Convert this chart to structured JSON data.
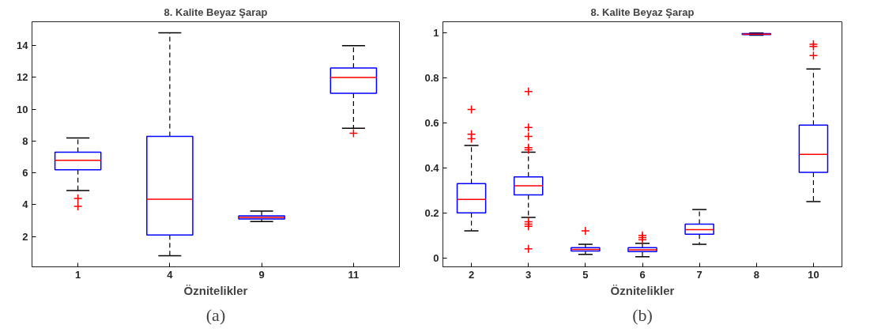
{
  "chart_data": [
    {
      "type": "box",
      "title": "8. Kalite Beyaz Şarap",
      "xlabel": "Öznitelikler",
      "categories": [
        "1",
        "4",
        "9",
        "11"
      ],
      "ylim": [
        0.1,
        15.5
      ],
      "yticks": [
        2,
        4,
        6,
        8,
        10,
        12,
        14
      ],
      "grid": false,
      "marker": "cross",
      "annotations": [
        "(a)"
      ],
      "boxes": [
        {
          "low": 4.9,
          "q1": 6.2,
          "median": 6.8,
          "q3": 7.3,
          "high": 8.2,
          "outliers": [
            4.4,
            3.9
          ]
        },
        {
          "low": 0.8,
          "q1": 2.1,
          "median": 4.35,
          "q3": 8.3,
          "high": 14.8
        },
        {
          "low": 2.95,
          "q1": 3.1,
          "median": 3.2,
          "q3": 3.3,
          "high": 3.6
        },
        {
          "low": 8.8,
          "q1": 11.0,
          "median": 12.0,
          "q3": 12.6,
          "high": 14.0,
          "outliers": [
            8.5
          ]
        }
      ]
    },
    {
      "type": "box",
      "title": "8. Kalite Beyaz Şarap",
      "xlabel": "Öznitelikler",
      "categories": [
        "2",
        "3",
        "5",
        "6",
        "7",
        "8",
        "10"
      ],
      "ylim": [
        -0.04,
        1.05
      ],
      "yticks": [
        0,
        0.2,
        0.4,
        0.6,
        0.8,
        1
      ],
      "grid": false,
      "marker": "cross",
      "annotations": [
        "(b)"
      ],
      "boxes": [
        {
          "low": 0.12,
          "q1": 0.2,
          "median": 0.26,
          "q3": 0.33,
          "high": 0.5,
          "outliers": [
            0.53,
            0.55,
            0.66
          ]
        },
        {
          "low": 0.18,
          "q1": 0.28,
          "median": 0.32,
          "q3": 0.36,
          "high": 0.47,
          "outliers": [
            0.48,
            0.49,
            0.54,
            0.58,
            0.74,
            0.14,
            0.15,
            0.16,
            0.04
          ]
        },
        {
          "low": 0.015,
          "q1": 0.03,
          "median": 0.037,
          "q3": 0.045,
          "high": 0.06,
          "outliers": [
            0.12
          ]
        },
        {
          "low": 0.005,
          "q1": 0.028,
          "median": 0.036,
          "q3": 0.045,
          "high": 0.065,
          "outliers": [
            0.08,
            0.09,
            0.1
          ]
        },
        {
          "low": 0.06,
          "q1": 0.105,
          "median": 0.125,
          "q3": 0.15,
          "high": 0.215
        },
        {
          "low": 0.99,
          "q1": 0.993,
          "median": 0.995,
          "q3": 0.997,
          "high": 1.0
        },
        {
          "low": 0.25,
          "q1": 0.38,
          "median": 0.46,
          "q3": 0.59,
          "high": 0.84,
          "outliers": [
            0.9,
            0.94,
            0.95
          ]
        }
      ]
    }
  ]
}
